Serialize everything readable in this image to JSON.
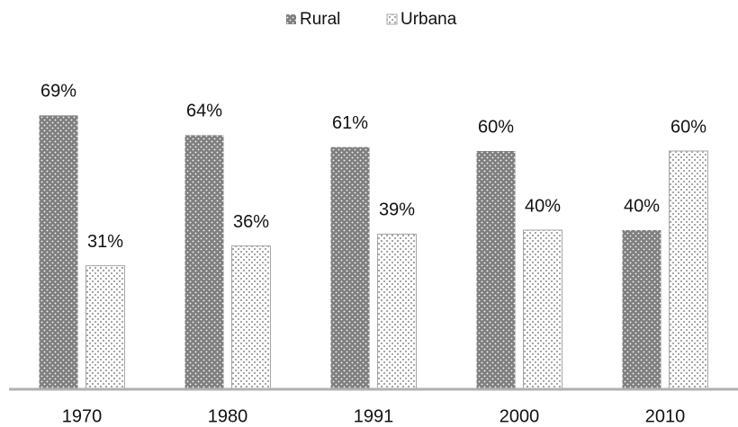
{
  "chart_data": {
    "type": "bar",
    "categories": [
      "1970",
      "1980",
      "1991",
      "2000",
      "2010"
    ],
    "series": [
      {
        "name": "Rural",
        "color": "#7f7f7f",
        "values": [
          69,
          64,
          61,
          60,
          40
        ],
        "value_labels": [
          "69%",
          "64%",
          "61%",
          "60%",
          "40%"
        ]
      },
      {
        "name": "Urbana",
        "color": "#a6a6a6",
        "values": [
          31,
          36,
          39,
          40,
          60
        ],
        "value_labels": [
          "31%",
          "36%",
          "39%",
          "40%",
          "60%"
        ]
      }
    ],
    "ylim": [
      0,
      80
    ],
    "legend": "top"
  }
}
